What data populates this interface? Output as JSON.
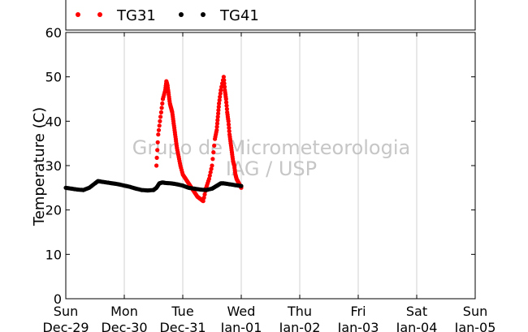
{
  "chart_data": {
    "type": "scatter",
    "title": "",
    "ylabel": "Temperature (C)",
    "xlabel": "",
    "ylim": [
      0,
      60
    ],
    "yticks": [
      0,
      10,
      20,
      30,
      40,
      50,
      60
    ],
    "xlim_days": [
      0,
      7
    ],
    "xticks": [
      {
        "day": "Sun",
        "date": "Dec-29"
      },
      {
        "day": "Mon",
        "date": "Dec-30"
      },
      {
        "day": "Tue",
        "date": "Dec-31"
      },
      {
        "day": "Wed",
        "date": "Jan-01"
      },
      {
        "day": "Thu",
        "date": "Jan-02"
      },
      {
        "day": "Fri",
        "date": "Jan-03"
      },
      {
        "day": "Sat",
        "date": "Jan-04"
      },
      {
        "day": "Sun",
        "date": "Jan-05"
      }
    ],
    "grid": "vertical",
    "legend_placement": "top",
    "watermark": [
      "Grupo de Micrometeorologia",
      "IAG / USP"
    ],
    "series": [
      {
        "name": "TG31",
        "color": "#ff0000",
        "x": [
          1.55,
          1.58,
          1.62,
          1.66,
          1.7,
          1.72,
          1.74,
          1.76,
          1.78,
          1.8,
          1.82,
          1.84,
          1.86,
          1.88,
          1.9,
          1.93,
          1.96,
          2.0,
          2.05,
          2.1,
          2.15,
          2.2,
          2.25,
          2.3,
          2.35,
          2.4,
          2.45,
          2.5,
          2.55,
          2.58,
          2.6,
          2.62,
          2.65,
          2.7,
          2.72,
          2.74,
          2.76,
          2.78,
          2.8,
          2.82,
          2.84,
          2.86,
          2.88,
          2.9,
          2.92,
          2.94,
          2.96,
          2.98,
          3.0
        ],
        "y": [
          30,
          37,
          41,
          45,
          47,
          49,
          48,
          46,
          44,
          43,
          42,
          40,
          38,
          36,
          34,
          32,
          30,
          28,
          27,
          26,
          25,
          24,
          23,
          22.5,
          22,
          25,
          27,
          30,
          36,
          38,
          41,
          44,
          47,
          50,
          47,
          45,
          42,
          40,
          37,
          35,
          33,
          31,
          30,
          28,
          27,
          26.5,
          26,
          25.5,
          25
        ]
      },
      {
        "name": "TG41",
        "color": "#000000",
        "x": [
          0,
          0.1,
          0.2,
          0.3,
          0.4,
          0.5,
          0.55,
          0.6,
          0.7,
          0.8,
          0.9,
          1.0,
          1.1,
          1.2,
          1.3,
          1.4,
          1.5,
          1.55,
          1.6,
          1.65,
          1.7,
          1.8,
          1.9,
          2.0,
          2.1,
          2.2,
          2.3,
          2.4,
          2.5,
          2.55,
          2.6,
          2.65,
          2.7,
          2.8,
          2.9,
          3.0
        ],
        "y": [
          25,
          24.8,
          24.6,
          24.5,
          25,
          26,
          26.5,
          26.4,
          26.2,
          26,
          25.8,
          25.5,
          25.2,
          24.8,
          24.5,
          24.4,
          24.5,
          25,
          26,
          26.2,
          26.1,
          26,
          25.8,
          25.5,
          25,
          24.8,
          24.6,
          24.5,
          24.8,
          25.2,
          25.6,
          26,
          26,
          25.8,
          25.6,
          25.4
        ]
      }
    ]
  }
}
